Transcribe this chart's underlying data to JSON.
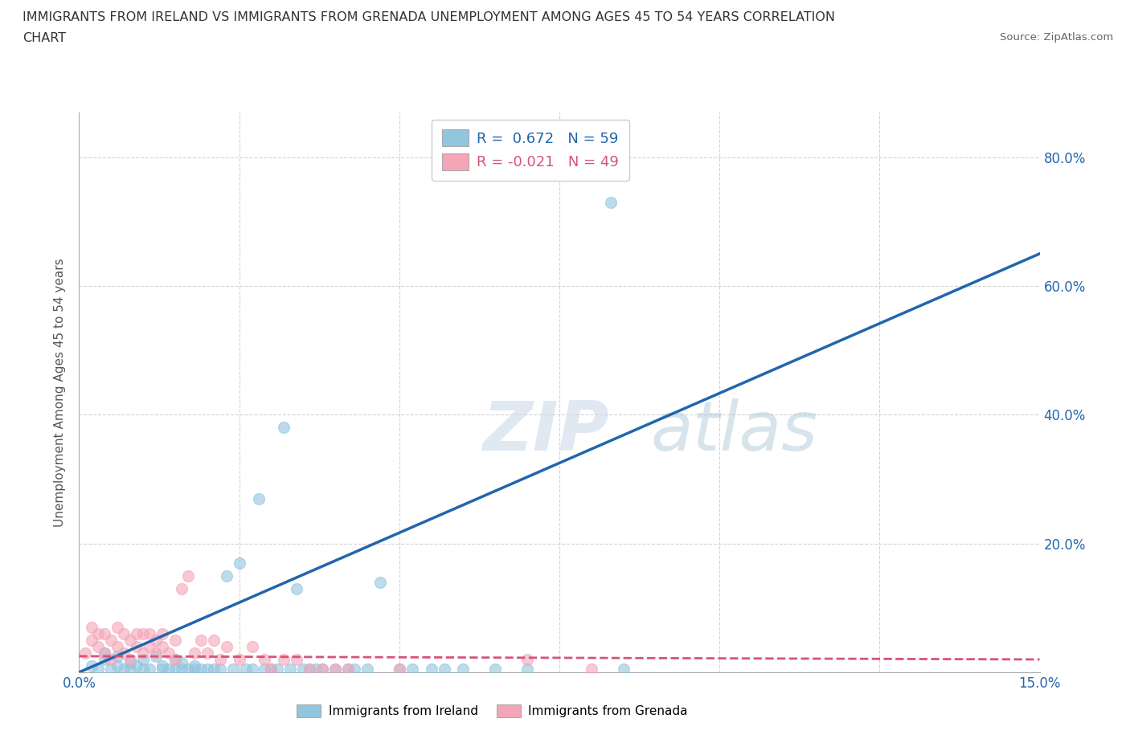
{
  "title_line1": "IMMIGRANTS FROM IRELAND VS IMMIGRANTS FROM GRENADA UNEMPLOYMENT AMONG AGES 45 TO 54 YEARS CORRELATION",
  "title_line2": "CHART",
  "source": "Source: ZipAtlas.com",
  "ylabel": "Unemployment Among Ages 45 to 54 years",
  "ireland_color": "#92c5de",
  "grenada_color": "#f4a6b8",
  "ireland_line_color": "#2166ac",
  "grenada_line_color": "#d6537a",
  "ireland_R": 0.672,
  "ireland_N": 59,
  "grenada_R": -0.021,
  "grenada_N": 49,
  "ireland_scatter_x": [
    0.002,
    0.003,
    0.004,
    0.004,
    0.005,
    0.006,
    0.006,
    0.007,
    0.008,
    0.008,
    0.009,
    0.01,
    0.01,
    0.011,
    0.012,
    0.013,
    0.013,
    0.014,
    0.015,
    0.015,
    0.016,
    0.016,
    0.017,
    0.018,
    0.018,
    0.019,
    0.02,
    0.021,
    0.022,
    0.023,
    0.024,
    0.025,
    0.026,
    0.027,
    0.028,
    0.029,
    0.03,
    0.031,
    0.032,
    0.033,
    0.034,
    0.035,
    0.036,
    0.037,
    0.038,
    0.04,
    0.042,
    0.043,
    0.045,
    0.047,
    0.05,
    0.052,
    0.055,
    0.057,
    0.06,
    0.065,
    0.07,
    0.083,
    0.085
  ],
  "ireland_scatter_y": [
    0.01,
    0.005,
    0.02,
    0.03,
    0.005,
    0.01,
    0.025,
    0.005,
    0.015,
    0.005,
    0.01,
    0.005,
    0.02,
    0.005,
    0.025,
    0.005,
    0.01,
    0.005,
    0.005,
    0.02,
    0.005,
    0.015,
    0.005,
    0.01,
    0.005,
    0.005,
    0.005,
    0.005,
    0.005,
    0.15,
    0.005,
    0.17,
    0.005,
    0.005,
    0.27,
    0.005,
    0.005,
    0.005,
    0.38,
    0.005,
    0.13,
    0.005,
    0.005,
    0.005,
    0.005,
    0.005,
    0.005,
    0.005,
    0.005,
    0.14,
    0.005,
    0.005,
    0.005,
    0.005,
    0.005,
    0.005,
    0.005,
    0.73,
    0.005
  ],
  "grenada_scatter_x": [
    0.001,
    0.002,
    0.002,
    0.003,
    0.003,
    0.004,
    0.004,
    0.005,
    0.005,
    0.006,
    0.006,
    0.007,
    0.007,
    0.008,
    0.008,
    0.009,
    0.009,
    0.01,
    0.01,
    0.011,
    0.011,
    0.012,
    0.012,
    0.013,
    0.013,
    0.014,
    0.015,
    0.015,
    0.016,
    0.017,
    0.018,
    0.019,
    0.02,
    0.021,
    0.022,
    0.023,
    0.025,
    0.027,
    0.029,
    0.03,
    0.032,
    0.034,
    0.036,
    0.038,
    0.04,
    0.042,
    0.05,
    0.07,
    0.08
  ],
  "grenada_scatter_y": [
    0.03,
    0.05,
    0.07,
    0.04,
    0.06,
    0.03,
    0.06,
    0.02,
    0.05,
    0.04,
    0.07,
    0.03,
    0.06,
    0.02,
    0.05,
    0.04,
    0.06,
    0.03,
    0.06,
    0.04,
    0.06,
    0.03,
    0.05,
    0.04,
    0.06,
    0.03,
    0.02,
    0.05,
    0.13,
    0.15,
    0.03,
    0.05,
    0.03,
    0.05,
    0.02,
    0.04,
    0.02,
    0.04,
    0.02,
    0.005,
    0.02,
    0.02,
    0.005,
    0.005,
    0.005,
    0.005,
    0.005,
    0.02,
    0.005
  ],
  "ireland_line_x": [
    0.0,
    0.15
  ],
  "ireland_line_y": [
    0.0,
    0.65
  ],
  "grenada_line_x": [
    0.0,
    0.15
  ],
  "grenada_line_y": [
    0.025,
    0.02
  ],
  "xlim": [
    0.0,
    0.15
  ],
  "ylim": [
    0.0,
    0.87
  ],
  "yticks": [
    0.2,
    0.4,
    0.6,
    0.8
  ],
  "ytick_labels": [
    "20.0%",
    "40.0%",
    "60.0%",
    "80.0%"
  ],
  "xtick_labels": [
    "0.0%",
    "15.0%"
  ],
  "watermark_text": "ZIPatlas",
  "background_color": "#ffffff",
  "grid_color": "#d0d0d0",
  "legend_ireland_label": "R =  0.672   N = 59",
  "legend_grenada_label": "R = -0.021   N = 49",
  "bottom_legend_ireland": "Immigrants from Ireland",
  "bottom_legend_grenada": "Immigrants from Grenada"
}
